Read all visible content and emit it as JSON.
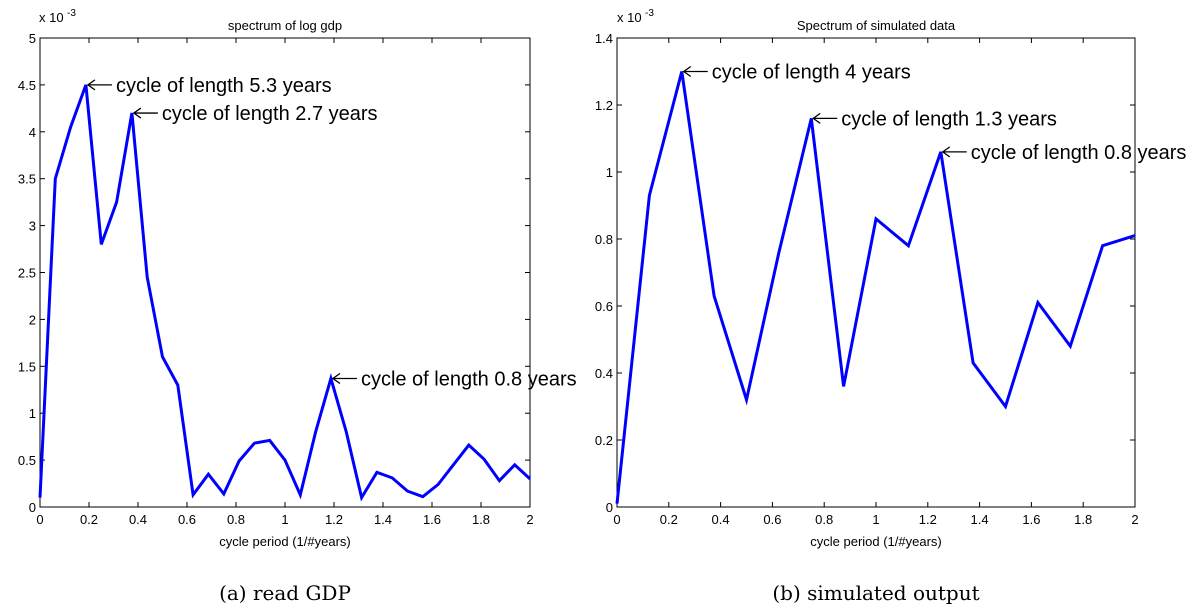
{
  "figure": {
    "captions": [
      "(a) read GDP",
      "(b) simulated output"
    ]
  },
  "chart_data": [
    {
      "type": "line",
      "title": "spectrum of log gdp",
      "xlabel": "cycle period (1/#years)",
      "ylabel": "",
      "exponent_label": "x 10",
      "exponent_power": "-3",
      "xlim": [
        0,
        2
      ],
      "ylim": [
        0,
        5
      ],
      "xticks": [
        "0",
        "0.2",
        "0.4",
        "0.6",
        "0.8",
        "1",
        "1.2",
        "1.4",
        "1.6",
        "1.8",
        "2"
      ],
      "yticks": [
        "0",
        "0.5",
        "1",
        "1.5",
        "2",
        "2.5",
        "3",
        "3.5",
        "4",
        "4.5",
        "5"
      ],
      "color": "#0000ff",
      "series": [
        {
          "x": [
            0,
            0.0625,
            0.125,
            0.1875,
            0.25,
            0.3125,
            0.375,
            0.4375,
            0.5,
            0.5625,
            0.625,
            0.6875,
            0.75,
            0.8125,
            0.875,
            0.9375,
            1.0,
            1.0625,
            1.125,
            1.1875,
            1.25,
            1.3125,
            1.375,
            1.4375,
            1.5,
            1.5625,
            1.625,
            1.6875,
            1.75,
            1.8125,
            1.875,
            1.9375,
            2.0
          ],
          "y": [
            0.1,
            3.5,
            4.05,
            4.5,
            2.8,
            3.25,
            4.2,
            2.45,
            1.6,
            1.3,
            0.13,
            0.35,
            0.14,
            0.49,
            0.68,
            0.71,
            0.5,
            0.13,
            0.8,
            1.37,
            0.8,
            0.1,
            0.37,
            0.31,
            0.17,
            0.11,
            0.24,
            0.45,
            0.66,
            0.51,
            0.28,
            0.45,
            0.3
          ]
        }
      ],
      "annotations": [
        {
          "text": "cycle of length 5.3 years",
          "x": 0.1875,
          "y": 4.5
        },
        {
          "text": "cycle of length 2.7 years",
          "x": 0.375,
          "y": 4.2
        },
        {
          "text": "cycle of length 0.8 years",
          "x": 1.1875,
          "y": 1.37
        }
      ]
    },
    {
      "type": "line",
      "title": "Spectrum of simulated data",
      "xlabel": "cycle period (1/#years)",
      "ylabel": "",
      "exponent_label": "x 10",
      "exponent_power": "-3",
      "xlim": [
        0,
        2
      ],
      "ylim": [
        0,
        1.4
      ],
      "xticks": [
        "0",
        "0.2",
        "0.4",
        "0.6",
        "0.8",
        "1",
        "1.2",
        "1.4",
        "1.6",
        "1.8",
        "2"
      ],
      "yticks": [
        "0",
        "0.2",
        "0.4",
        "0.6",
        "0.8",
        "1",
        "1.2",
        "1.4"
      ],
      "color": "#0000ff",
      "series": [
        {
          "x": [
            0,
            0.125,
            0.25,
            0.375,
            0.5,
            0.625,
            0.75,
            0.875,
            1.0,
            1.125,
            1.25,
            1.375,
            1.5,
            1.625,
            1.75,
            1.875,
            2.0
          ],
          "y": [
            0.01,
            0.93,
            1.3,
            0.63,
            0.32,
            0.76,
            1.16,
            0.36,
            0.86,
            0.78,
            1.06,
            0.43,
            0.3,
            0.61,
            0.48,
            0.78,
            0.81
          ]
        }
      ],
      "annotations": [
        {
          "text": "cycle of length 4 years",
          "x": 0.25,
          "y": 1.3
        },
        {
          "text": "cycle of length 1.3 years",
          "x": 0.75,
          "y": 1.16
        },
        {
          "text": "cycle of length 0.8 years",
          "x": 1.25,
          "y": 1.06
        }
      ]
    }
  ]
}
